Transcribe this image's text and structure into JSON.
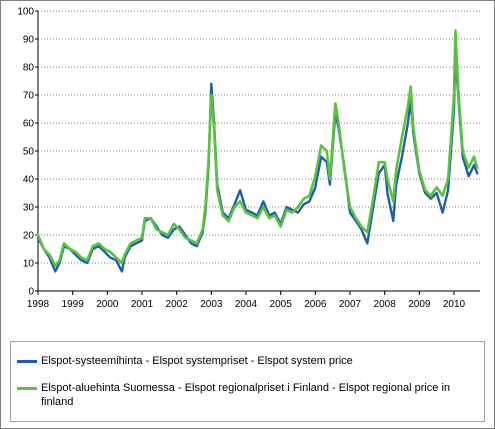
{
  "chart_data": {
    "type": "line",
    "title": "",
    "xlabel": "",
    "ylabel": "",
    "xlim": [
      1998,
      2010.75
    ],
    "ylim": [
      0,
      100
    ],
    "x_ticks": [
      "1998",
      "1999",
      "2000",
      "2001",
      "2002",
      "2003",
      "2004",
      "2005",
      "2006",
      "2007",
      "2008",
      "2009",
      "2010"
    ],
    "y_ticks": [
      "0",
      "10",
      "20",
      "30",
      "40",
      "50",
      "60",
      "70",
      "80",
      "90",
      "100"
    ],
    "grid": "horizontal",
    "legend_position": "bottom",
    "series": [
      {
        "name": "Elspot-systeemihinta - Elspot systempriset - Elspot system price",
        "color": "#1f5fa8",
        "points": [
          [
            1998.0,
            19
          ],
          [
            1998.17,
            15
          ],
          [
            1998.33,
            12
          ],
          [
            1998.5,
            7
          ],
          [
            1998.62,
            10
          ],
          [
            1998.75,
            16
          ],
          [
            1998.92,
            15
          ],
          [
            1999.08,
            13
          ],
          [
            1999.25,
            11
          ],
          [
            1999.42,
            10
          ],
          [
            1999.58,
            15
          ],
          [
            1999.75,
            16
          ],
          [
            1999.92,
            14
          ],
          [
            2000.08,
            12
          ],
          [
            2000.25,
            11
          ],
          [
            2000.42,
            7
          ],
          [
            2000.5,
            12
          ],
          [
            2000.67,
            16
          ],
          [
            2000.83,
            17
          ],
          [
            2001.0,
            18
          ],
          [
            2001.08,
            25
          ],
          [
            2001.25,
            26
          ],
          [
            2001.42,
            23
          ],
          [
            2001.58,
            20
          ],
          [
            2001.75,
            19
          ],
          [
            2001.92,
            22
          ],
          [
            2002.08,
            23
          ],
          [
            2002.25,
            20
          ],
          [
            2002.42,
            17
          ],
          [
            2002.58,
            16
          ],
          [
            2002.75,
            21
          ],
          [
            2002.83,
            28
          ],
          [
            2002.92,
            45
          ],
          [
            2003.0,
            74
          ],
          [
            2003.08,
            60
          ],
          [
            2003.17,
            38
          ],
          [
            2003.33,
            28
          ],
          [
            2003.5,
            26
          ],
          [
            2003.67,
            31
          ],
          [
            2003.83,
            36
          ],
          [
            2004.0,
            29
          ],
          [
            2004.17,
            28
          ],
          [
            2004.33,
            27
          ],
          [
            2004.5,
            32
          ],
          [
            2004.67,
            27
          ],
          [
            2004.83,
            28
          ],
          [
            2005.0,
            24
          ],
          [
            2005.17,
            30
          ],
          [
            2005.33,
            29
          ],
          [
            2005.5,
            28
          ],
          [
            2005.67,
            31
          ],
          [
            2005.83,
            32
          ],
          [
            2006.0,
            37
          ],
          [
            2006.17,
            48
          ],
          [
            2006.33,
            46
          ],
          [
            2006.42,
            38
          ],
          [
            2006.58,
            64
          ],
          [
            2006.67,
            58
          ],
          [
            2006.83,
            45
          ],
          [
            2007.0,
            28
          ],
          [
            2007.17,
            25
          ],
          [
            2007.33,
            22
          ],
          [
            2007.5,
            17
          ],
          [
            2007.67,
            30
          ],
          [
            2007.83,
            42
          ],
          [
            2008.0,
            45
          ],
          [
            2008.08,
            35
          ],
          [
            2008.25,
            25
          ],
          [
            2008.33,
            38
          ],
          [
            2008.5,
            48
          ],
          [
            2008.67,
            60
          ],
          [
            2008.75,
            68
          ],
          [
            2008.83,
            56
          ],
          [
            2009.0,
            42
          ],
          [
            2009.17,
            35
          ],
          [
            2009.33,
            33
          ],
          [
            2009.5,
            35
          ],
          [
            2009.67,
            28
          ],
          [
            2009.83,
            36
          ],
          [
            2010.0,
            65
          ],
          [
            2010.04,
            85
          ],
          [
            2010.12,
            70
          ],
          [
            2010.25,
            48
          ],
          [
            2010.42,
            41
          ],
          [
            2010.58,
            45
          ],
          [
            2010.67,
            42
          ]
        ]
      },
      {
        "name": "Elspot-aluehinta Suomessa - Elspot regionalpriset i Finland - Elspot regional price in finland",
        "color": "#5cc040",
        "points": [
          [
            1998.0,
            20
          ],
          [
            1998.17,
            15
          ],
          [
            1998.33,
            13
          ],
          [
            1998.5,
            9
          ],
          [
            1998.62,
            11
          ],
          [
            1998.75,
            17
          ],
          [
            1998.92,
            15
          ],
          [
            1999.08,
            14
          ],
          [
            1999.25,
            12
          ],
          [
            1999.42,
            11
          ],
          [
            1999.58,
            16
          ],
          [
            1999.75,
            17
          ],
          [
            1999.92,
            15
          ],
          [
            2000.08,
            14
          ],
          [
            2000.25,
            12
          ],
          [
            2000.42,
            10
          ],
          [
            2000.5,
            13
          ],
          [
            2000.67,
            17
          ],
          [
            2000.83,
            18
          ],
          [
            2001.0,
            19
          ],
          [
            2001.08,
            26
          ],
          [
            2001.25,
            26
          ],
          [
            2001.42,
            22
          ],
          [
            2001.58,
            21
          ],
          [
            2001.75,
            20
          ],
          [
            2001.92,
            24
          ],
          [
            2002.08,
            22
          ],
          [
            2002.25,
            19
          ],
          [
            2002.42,
            18
          ],
          [
            2002.58,
            17
          ],
          [
            2002.75,
            22
          ],
          [
            2002.83,
            30
          ],
          [
            2002.92,
            47
          ],
          [
            2003.0,
            70
          ],
          [
            2003.08,
            58
          ],
          [
            2003.17,
            36
          ],
          [
            2003.33,
            27
          ],
          [
            2003.5,
            25
          ],
          [
            2003.67,
            30
          ],
          [
            2003.83,
            32
          ],
          [
            2004.0,
            28
          ],
          [
            2004.17,
            27
          ],
          [
            2004.33,
            26
          ],
          [
            2004.5,
            30
          ],
          [
            2004.67,
            26
          ],
          [
            2004.83,
            27
          ],
          [
            2005.0,
            23
          ],
          [
            2005.17,
            29
          ],
          [
            2005.33,
            28
          ],
          [
            2005.5,
            30
          ],
          [
            2005.67,
            33
          ],
          [
            2005.83,
            34
          ],
          [
            2006.0,
            41
          ],
          [
            2006.17,
            52
          ],
          [
            2006.33,
            50
          ],
          [
            2006.42,
            40
          ],
          [
            2006.58,
            67
          ],
          [
            2006.67,
            60
          ],
          [
            2006.83,
            44
          ],
          [
            2007.0,
            30
          ],
          [
            2007.17,
            26
          ],
          [
            2007.33,
            23
          ],
          [
            2007.5,
            21
          ],
          [
            2007.67,
            33
          ],
          [
            2007.83,
            46
          ],
          [
            2008.0,
            46
          ],
          [
            2008.08,
            40
          ],
          [
            2008.25,
            32
          ],
          [
            2008.33,
            43
          ],
          [
            2008.5,
            55
          ],
          [
            2008.67,
            66
          ],
          [
            2008.75,
            73
          ],
          [
            2008.83,
            58
          ],
          [
            2009.0,
            43
          ],
          [
            2009.17,
            36
          ],
          [
            2009.33,
            34
          ],
          [
            2009.5,
            37
          ],
          [
            2009.67,
            34
          ],
          [
            2009.83,
            40
          ],
          [
            2010.0,
            70
          ],
          [
            2010.04,
            93
          ],
          [
            2010.12,
            72
          ],
          [
            2010.25,
            50
          ],
          [
            2010.42,
            44
          ],
          [
            2010.58,
            48
          ],
          [
            2010.67,
            44
          ]
        ]
      }
    ]
  }
}
